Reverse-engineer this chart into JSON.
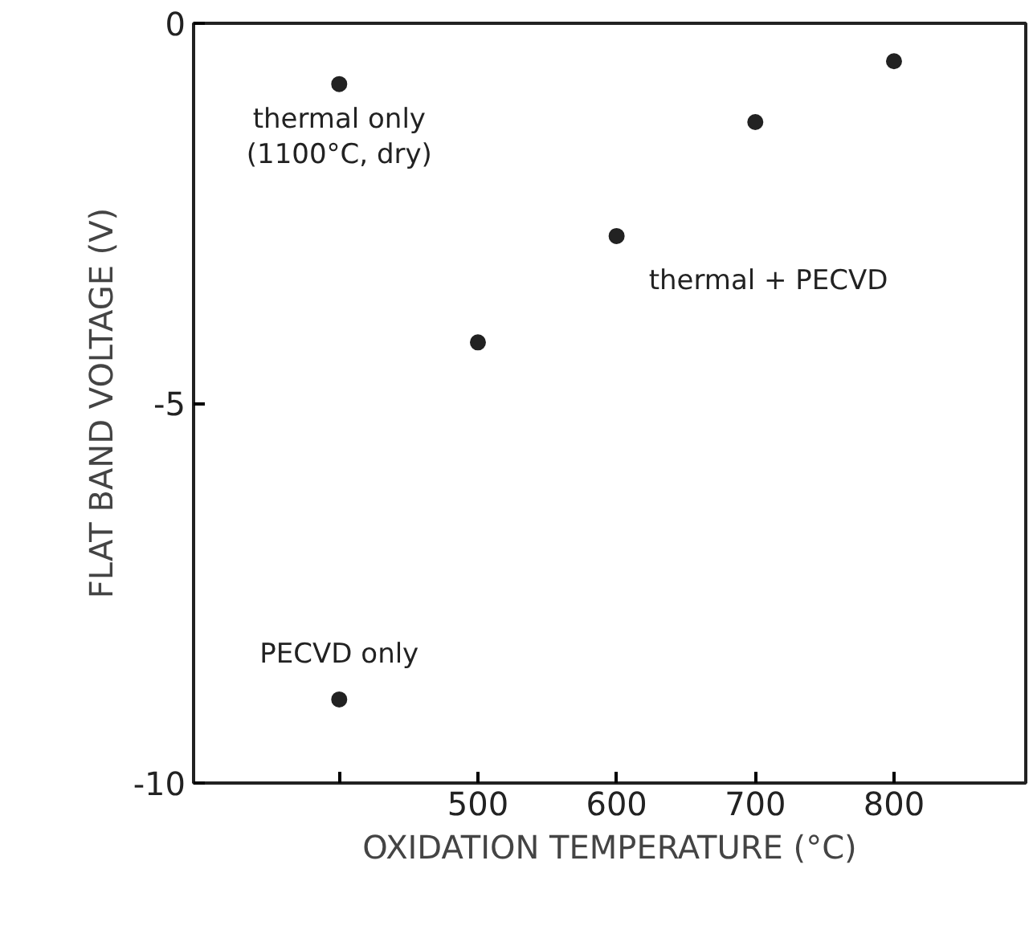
{
  "chart_data": {
    "type": "scatter",
    "xlabel": "OXIDATION TEMPERATURE (°C)",
    "ylabel": "FLAT BAND VOLTAGE (V)",
    "categories": [
      null,
      "500",
      "600",
      "700",
      "800"
    ],
    "ylim": [
      -10,
      0
    ],
    "yticks": [
      0,
      -5,
      -10
    ],
    "grid": false,
    "legend": false,
    "marker": "circle",
    "series": [
      {
        "name": "thermal only\n(1100°C, dry)",
        "color": "#222222",
        "values": [
          -0.8,
          null,
          null,
          null,
          null
        ]
      },
      {
        "name": "PECVD only",
        "color": "#222222",
        "values": [
          -8.9,
          null,
          null,
          null,
          null
        ]
      },
      {
        "name": "thermal + PECVD",
        "color": "#222222",
        "values": [
          null,
          -4.2,
          -2.8,
          -1.3,
          -0.5
        ]
      }
    ]
  }
}
